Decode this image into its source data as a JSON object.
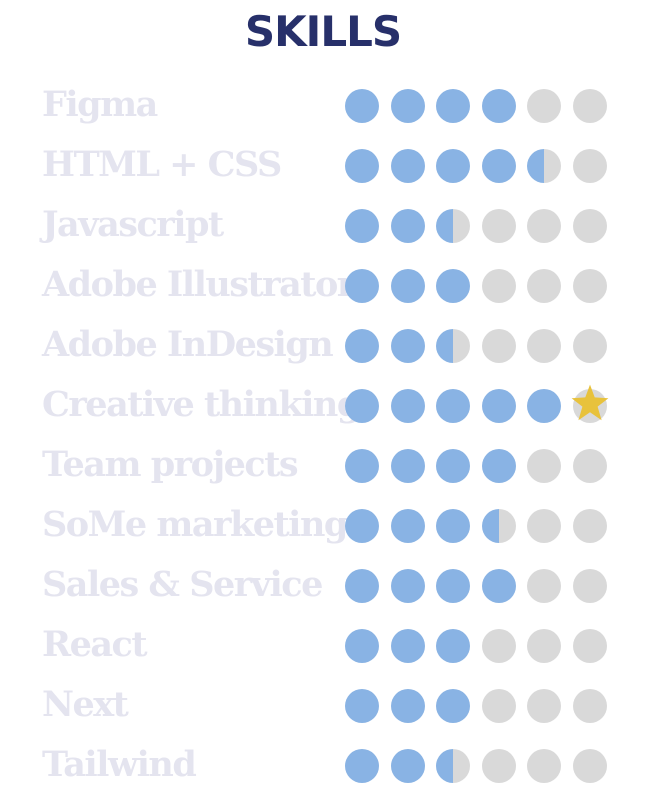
{
  "title": "SKILLS",
  "colors": {
    "filled": "#89b3e4",
    "empty": "#d9d9d9",
    "star": "#e8c23c",
    "title": "#27306a",
    "label": "#e4e4ef"
  },
  "max_rating": 6,
  "skills": [
    {
      "name": "Figma",
      "rating": 4
    },
    {
      "name": "HTML + CSS",
      "rating": 4.5
    },
    {
      "name": "Javascript",
      "rating": 2.5
    },
    {
      "name": "Adobe Illustrator",
      "rating": 3
    },
    {
      "name": "Adobe InDesign",
      "rating": 2.5
    },
    {
      "name": "Creative thinking",
      "rating": 5,
      "star": true
    },
    {
      "name": "Team projects",
      "rating": 4
    },
    {
      "name": "SoMe marketing",
      "rating": 3.5
    },
    {
      "name": "Sales & Service",
      "rating": 4
    },
    {
      "name": "React",
      "rating": 3
    },
    {
      "name": "Next",
      "rating": 3
    },
    {
      "name": "Tailwind",
      "rating": 2.5
    }
  ]
}
